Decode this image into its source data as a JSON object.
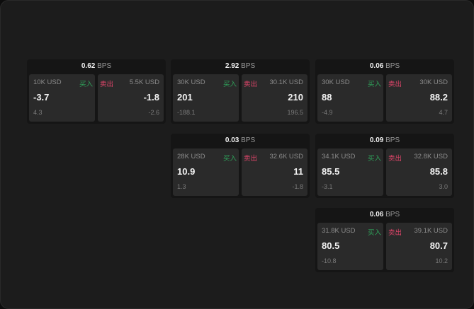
{
  "unit": "BPS",
  "buy_label": "买入",
  "sell_label": "卖出",
  "colors": {
    "buy": "#2fa35a",
    "sell": "#e0456a"
  },
  "widgets": [
    {
      "spread": "0.62",
      "bid": {
        "qty": "10K USD",
        "price": "-3.7",
        "change": "4.3"
      },
      "ask": {
        "qty": "5.5K USD",
        "price": "-1.8",
        "change": "-2.6"
      }
    },
    {
      "spread": "2.92",
      "bid": {
        "qty": "30K USD",
        "price": "201",
        "change": "-188.1"
      },
      "ask": {
        "qty": "30.1K USD",
        "price": "210",
        "change": "196.5"
      }
    },
    {
      "spread": "0.06",
      "bid": {
        "qty": "30K USD",
        "price": "88",
        "change": "-4.9"
      },
      "ask": {
        "qty": "30K USD",
        "price": "88.2",
        "change": "4.7"
      }
    },
    {
      "spread": "0.03",
      "bid": {
        "qty": "28K USD",
        "price": "10.9",
        "change": "1.3"
      },
      "ask": {
        "qty": "32.6K USD",
        "price": "11",
        "change": "-1.8"
      }
    },
    {
      "spread": "0.09",
      "bid": {
        "qty": "34.1K USD",
        "price": "85.5",
        "change": "-3.1"
      },
      "ask": {
        "qty": "32.8K USD",
        "price": "85.8",
        "change": "3.0"
      }
    },
    {
      "spread": "0.06",
      "bid": {
        "qty": "31.8K USD",
        "price": "80.5",
        "change": "-10.8"
      },
      "ask": {
        "qty": "39.1K USD",
        "price": "80.7",
        "change": "10.2"
      }
    }
  ]
}
